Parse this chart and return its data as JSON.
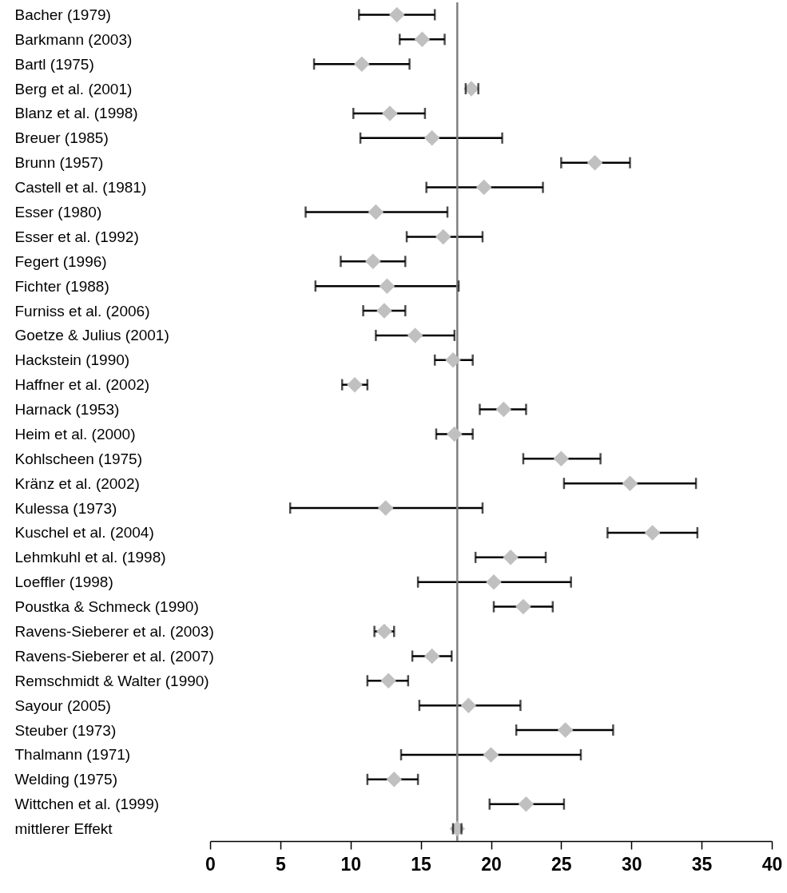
{
  "chart_data": {
    "type": "scatter",
    "orientation": "horizontal",
    "marker": "diamond",
    "grid": false,
    "categories": [
      "Bacher (1979)",
      "Barkmann (2003)",
      "Bartl (1975)",
      "Berg et al. (2001)",
      "Blanz et al. (1998)",
      "Breuer (1985)",
      "Brunn (1957)",
      "Castell et al. (1981)",
      "Esser (1980)",
      "Esser et al. (1992)",
      "Fegert (1996)",
      "Fichter (1988)",
      "Furniss et al. (2006)",
      "Goetze & Julius (2001)",
      "Hackstein (1990)",
      "Haffner et al. (2002)",
      "Harnack (1953)",
      "Heim et al. (2000)",
      "Kohlscheen (1975)",
      "Kränz et al. (2002)",
      "Kulessa (1973)",
      "Kuschel et al. (2004)",
      "Lehmkuhl et al. (1998)",
      "Loeffler (1998)",
      "Poustka & Schmeck (1990)",
      "Ravens-Sieberer et al. (2003)",
      "Ravens-Sieberer et al. (2007)",
      "Remschmidt & Walter (1990)",
      "Sayour (2005)",
      "Steuber (1973)",
      "Thalmann (1971)",
      "Welding (1975)",
      "Wittchen et al. (1999)",
      "mittlerer Effekt"
    ],
    "series": [
      {
        "color": "#c0c0c0",
        "values": [
          13.3,
          15.1,
          10.8,
          18.6,
          12.8,
          15.8,
          27.4,
          19.5,
          11.8,
          16.6,
          11.6,
          12.6,
          12.4,
          14.6,
          17.3,
          10.3,
          20.9,
          17.4,
          25.0,
          29.9,
          12.5,
          31.5,
          21.4,
          20.2,
          22.3,
          12.4,
          15.8,
          12.7,
          18.4,
          25.3,
          20.0,
          13.1,
          22.5,
          17.6
        ],
        "errors": [
          [
            10.6,
            16.0
          ],
          [
            13.5,
            16.7
          ],
          [
            7.4,
            14.2
          ],
          [
            18.2,
            19.1
          ],
          [
            10.2,
            15.3
          ],
          [
            10.7,
            20.8
          ],
          [
            25.0,
            29.9
          ],
          [
            15.4,
            23.7
          ],
          [
            6.8,
            16.9
          ],
          [
            14.0,
            19.4
          ],
          [
            9.3,
            13.9
          ],
          [
            7.5,
            17.7
          ],
          [
            10.9,
            13.9
          ],
          [
            11.8,
            17.4
          ],
          [
            16.0,
            18.7
          ],
          [
            9.4,
            11.2
          ],
          [
            19.2,
            22.5
          ],
          [
            16.1,
            18.7
          ],
          [
            22.3,
            27.8
          ],
          [
            25.2,
            34.6
          ],
          [
            5.7,
            19.4
          ],
          [
            28.3,
            34.7
          ],
          [
            18.9,
            23.9
          ],
          [
            14.8,
            25.7
          ],
          [
            20.2,
            24.4
          ],
          [
            11.7,
            13.1
          ],
          [
            14.4,
            17.2
          ],
          [
            11.2,
            14.1
          ],
          [
            14.9,
            22.1
          ],
          [
            21.8,
            28.7
          ],
          [
            13.6,
            26.4
          ],
          [
            11.2,
            14.8
          ],
          [
            19.9,
            25.2
          ],
          [
            17.3,
            17.9
          ]
        ]
      }
    ],
    "xlim": [
      0,
      40
    ],
    "xticks": [
      0,
      5,
      10,
      15,
      20,
      25,
      30,
      35,
      40
    ],
    "ref_lines": [
      {
        "axis": "x",
        "value": 17.6,
        "color": "#808080"
      }
    ]
  }
}
